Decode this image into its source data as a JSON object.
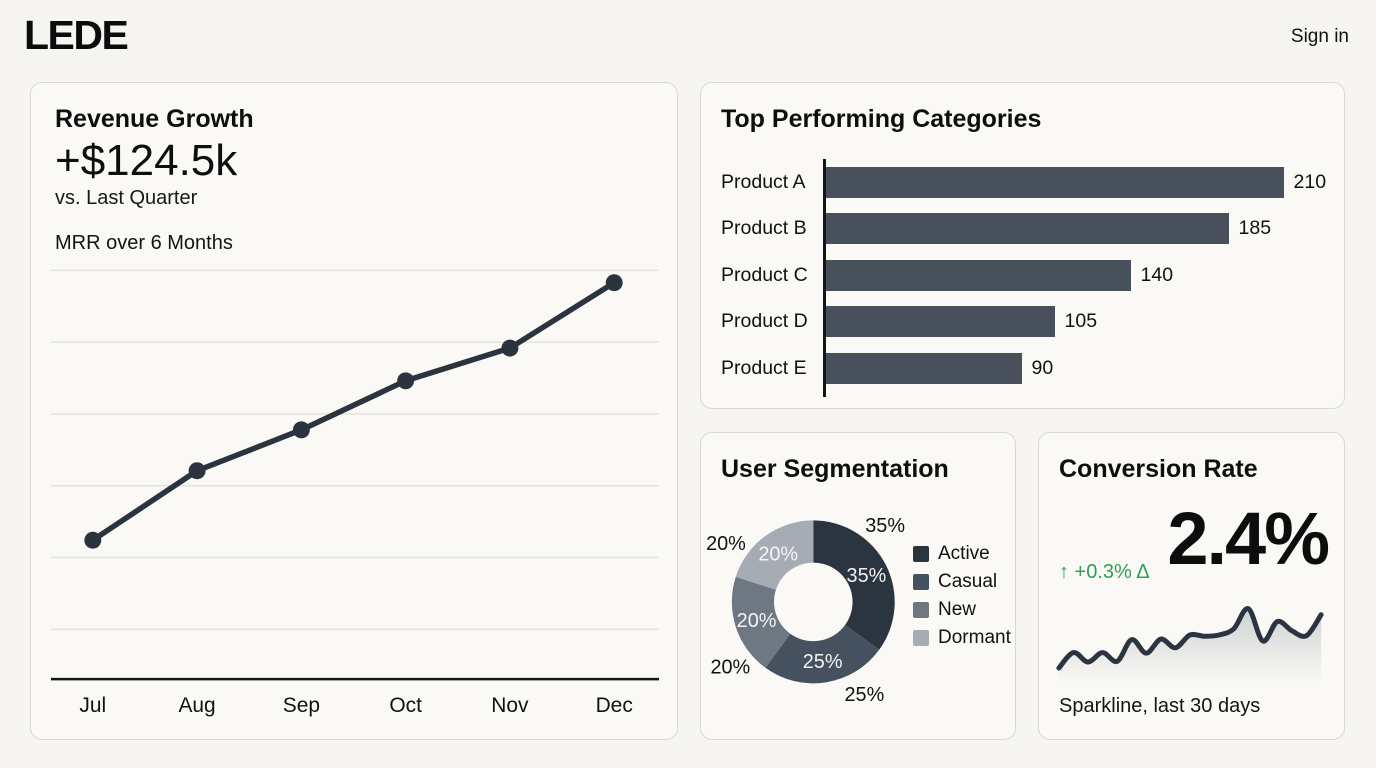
{
  "header": {
    "logo": "LEDE",
    "sign_in_label": "Sign in"
  },
  "revenue_card": {
    "title": "Revenue Growth",
    "kpi_value": "+$124.5k",
    "kpi_caption": "vs. Last Quarter",
    "chart_label": "MRR over 6 Months"
  },
  "categories_card": {
    "title": "Top Performing Categories"
  },
  "segmentation_card": {
    "title": "User Segmentation"
  },
  "conversion_card": {
    "title": "Conversion Rate",
    "kpi_value": "2.4%",
    "delta_text": "↑ +0.3% Δ",
    "caption": "Sparkline, last 30 days"
  },
  "colors": {
    "page_bg": "#f6f5f2",
    "card_bg": "#faf9f6",
    "card_border": "#d9d8d3",
    "text": "#111111",
    "gridline": "#e4e3df",
    "axis": "#161616",
    "line": "#2a333e",
    "bar": "#47505b",
    "green": "#2e9e56",
    "sparkline": "#2b3440",
    "spark_fill": "#9aa0a6",
    "donut_inner_label": "#f4f4f4"
  },
  "chart_data": [
    {
      "id": "mrr_line",
      "type": "line",
      "title": "MRR over 6 Months",
      "x": [
        "Jul",
        "Aug",
        "Sep",
        "Oct",
        "Nov",
        "Dec"
      ],
      "values": [
        34,
        51,
        61,
        73,
        81,
        97
      ],
      "ylim": [
        0,
        100
      ],
      "y_unit": "percent of plot height (y axis unlabeled)",
      "grid": true,
      "markers": true,
      "legend": false
    },
    {
      "id": "categories_bar",
      "type": "bar",
      "title": "Top Performing Categories",
      "orientation": "horizontal",
      "categories": [
        "Product A",
        "Product B",
        "Product C",
        "Product D",
        "Product E"
      ],
      "values": [
        210,
        185,
        140,
        105,
        90
      ],
      "xlim": [
        0,
        210
      ],
      "value_labels": true
    },
    {
      "id": "segmentation_donut",
      "type": "pie",
      "title": "User Segmentation",
      "donut": true,
      "labels": [
        "Active",
        "Casual",
        "New",
        "Dormant"
      ],
      "values": [
        35,
        25,
        20,
        20
      ],
      "colors": [
        "#2b3540",
        "#46515f",
        "#6e7883",
        "#a6acb4"
      ],
      "start_angle_deg": 0,
      "direction": "clockwise",
      "legend_position": "right",
      "label_style": "percent shown inside ring (white) and outside (black)"
    },
    {
      "id": "conversion_sparkline",
      "type": "line",
      "title": "Sparkline, last 30 days",
      "x_range": "last 30 days",
      "axes": false,
      "values": [
        5,
        28,
        14,
        28,
        15,
        47,
        27,
        48,
        35,
        54,
        52,
        54,
        63,
        93,
        45,
        74,
        60,
        53,
        84
      ],
      "ylim": [
        0,
        100
      ],
      "y_unit": "relative (unlabeled sparkline)"
    }
  ]
}
